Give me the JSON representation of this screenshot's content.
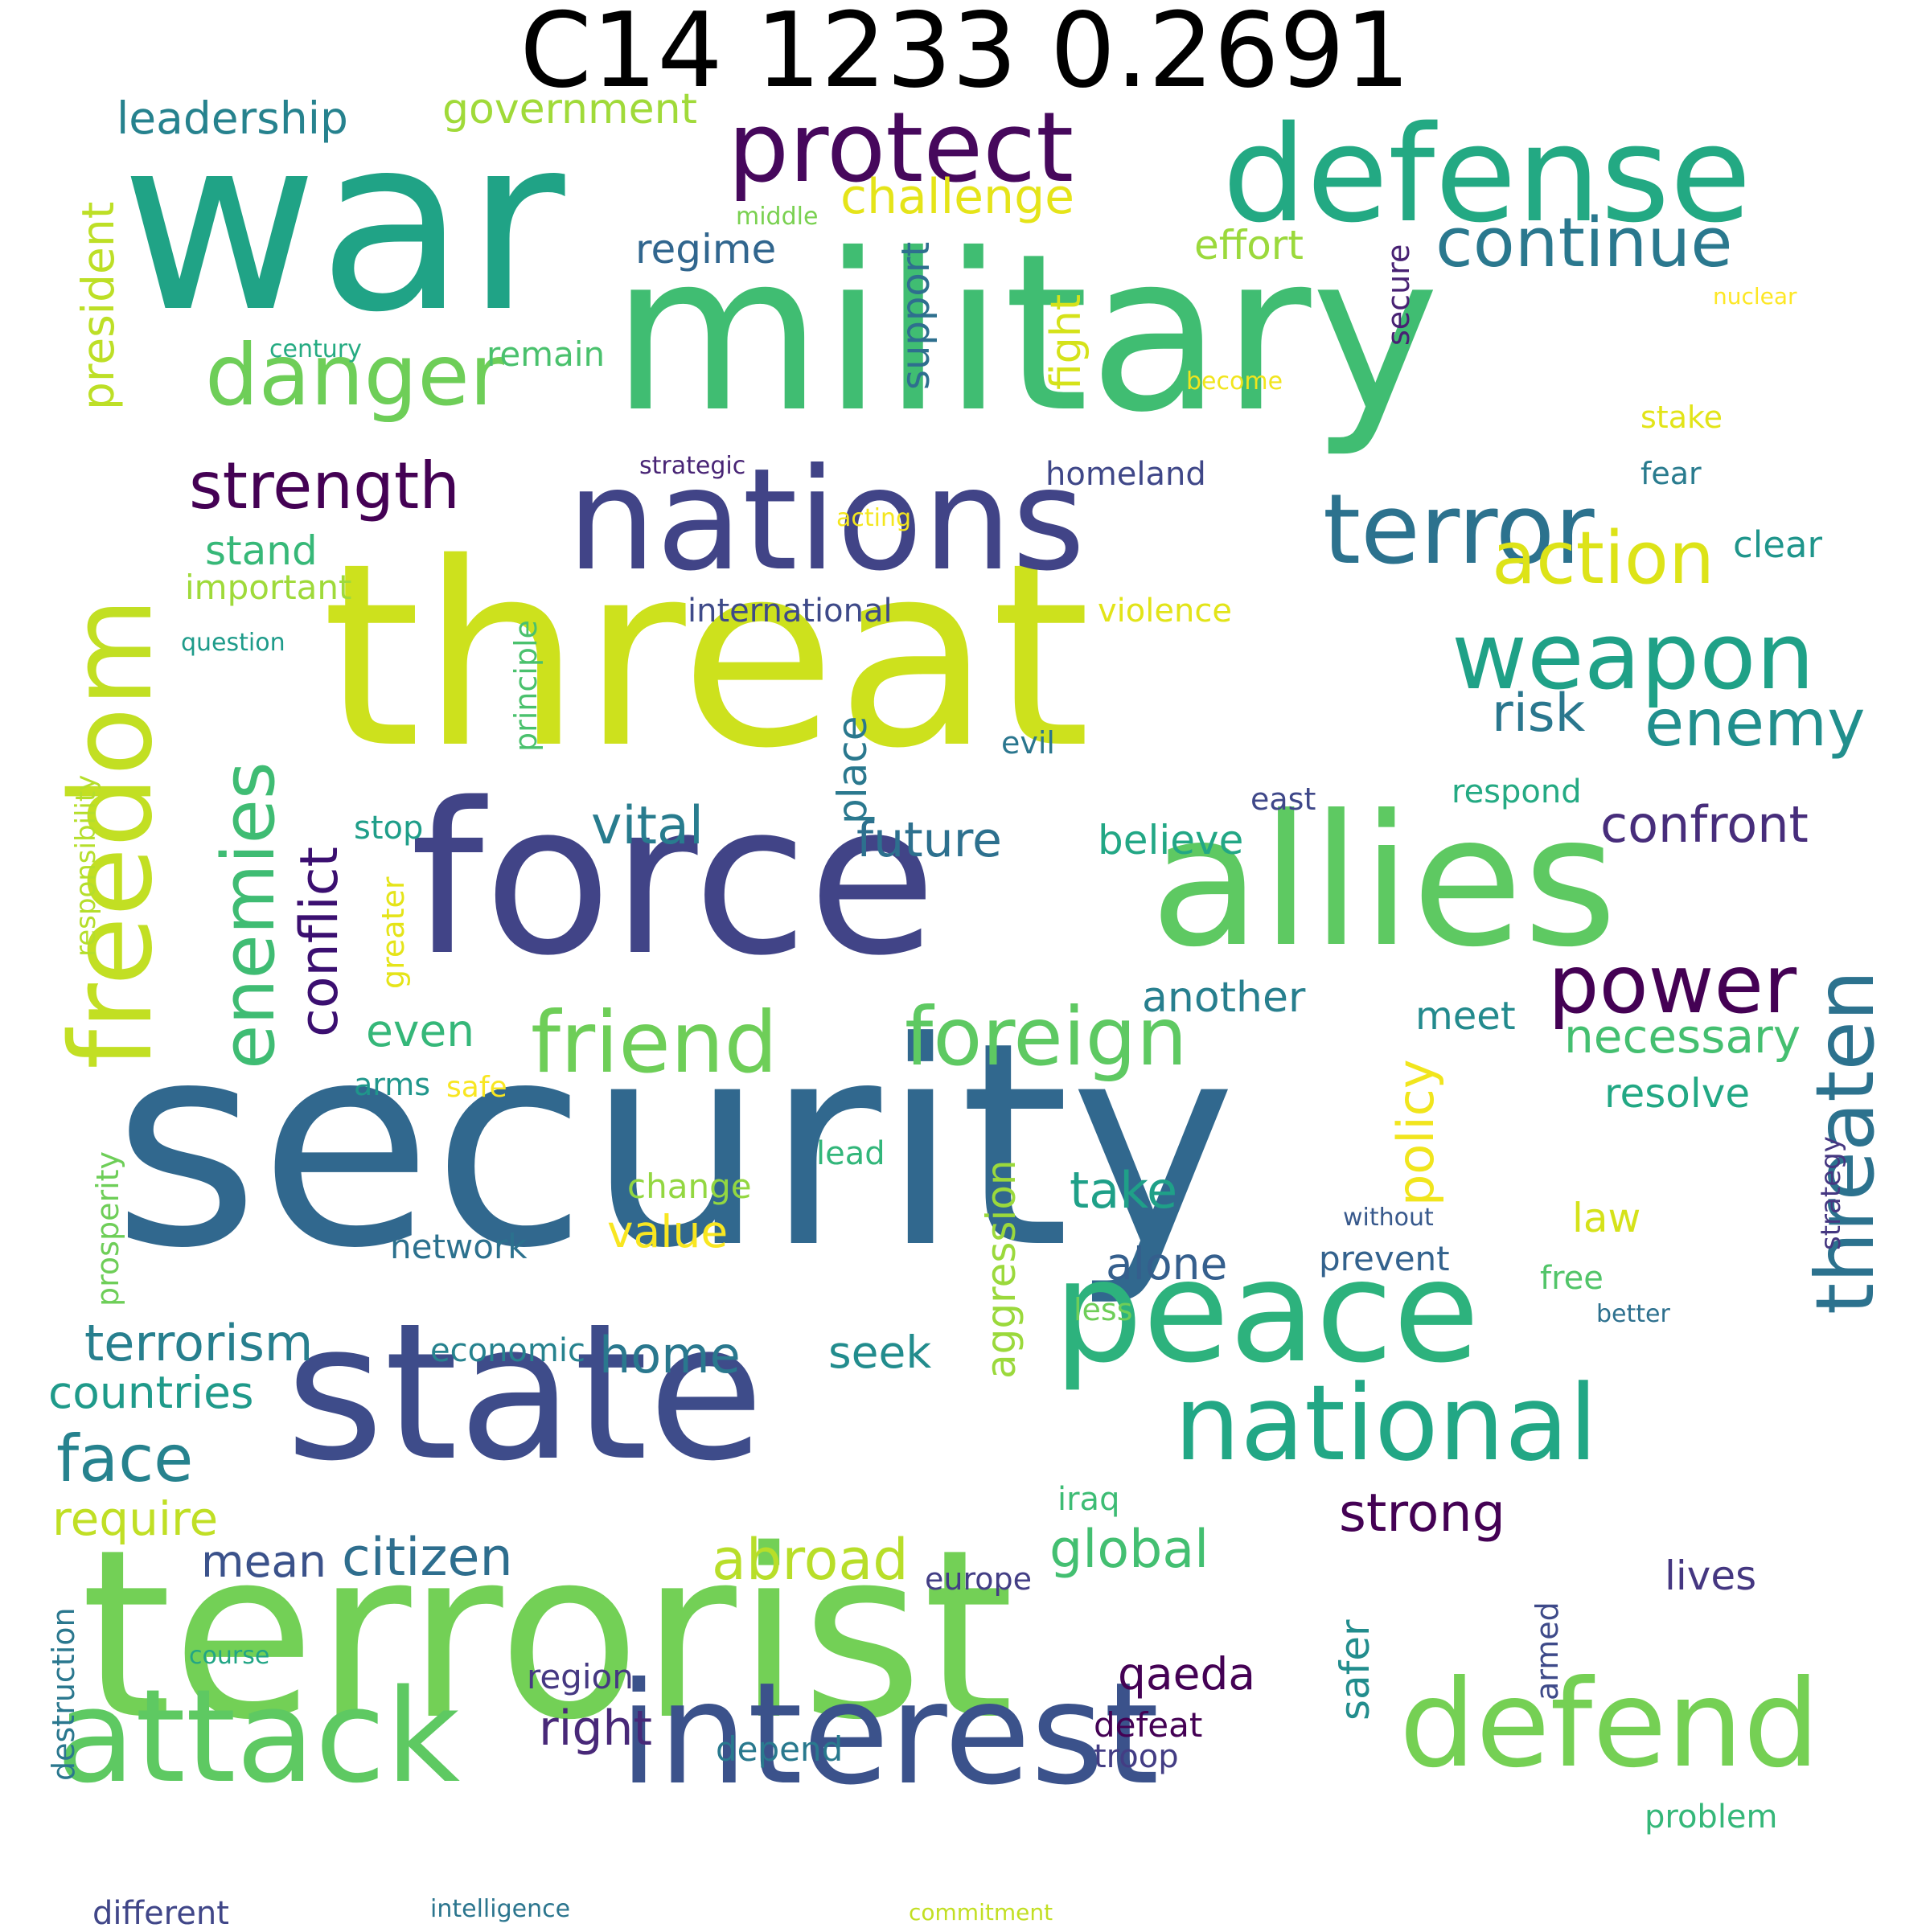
{
  "title": "C14 1233 0.2691",
  "colors": {
    "background": "#ffffff",
    "title": "#000000"
  },
  "words": [
    {
      "text": "war",
      "color": "#20a386"
    },
    {
      "text": "military",
      "color": "#40bd72"
    },
    {
      "text": "defense",
      "color": "#23a983"
    },
    {
      "text": "protect",
      "color": "#46085c"
    },
    {
      "text": "threat",
      "color": "#cde11d"
    },
    {
      "text": "nations",
      "color": "#414487"
    },
    {
      "text": "security",
      "color": "#31688e"
    },
    {
      "text": "force",
      "color": "#414487"
    },
    {
      "text": "allies",
      "color": "#5ec962"
    },
    {
      "text": "terrorist",
      "color": "#73d056"
    },
    {
      "text": "state",
      "color": "#3e4c8a"
    },
    {
      "text": "peace",
      "color": "#2db27d"
    },
    {
      "text": "interest",
      "color": "#3b528b"
    },
    {
      "text": "attack",
      "color": "#5ec962"
    },
    {
      "text": "defend",
      "color": "#75d054"
    },
    {
      "text": "national",
      "color": "#22a785"
    },
    {
      "text": "freedom",
      "color": "#c2df23"
    },
    {
      "text": "terror",
      "color": "#2c728e"
    },
    {
      "text": "danger",
      "color": "#6ece58"
    },
    {
      "text": "weapon",
      "color": "#1fa187"
    },
    {
      "text": "power",
      "color": "#440154"
    },
    {
      "text": "enemies",
      "color": "#3fbc73"
    },
    {
      "text": "friend",
      "color": "#6ece58"
    },
    {
      "text": "foreign",
      "color": "#5ec962"
    },
    {
      "text": "strength",
      "color": "#440154"
    },
    {
      "text": "conflict",
      "color": "#3b0f70"
    },
    {
      "text": "threaten",
      "color": "#2c728e"
    },
    {
      "text": "continue",
      "color": "#2a788e"
    },
    {
      "text": "action",
      "color": "#dde318"
    },
    {
      "text": "enemy",
      "color": "#218f8d"
    },
    {
      "text": "risk",
      "color": "#2a778e"
    },
    {
      "text": "challenge",
      "color": "#e5e419"
    },
    {
      "text": "confront",
      "color": "#472d7b"
    },
    {
      "text": "necessary",
      "color": "#44bf70"
    },
    {
      "text": "vital",
      "color": "#287c8e"
    },
    {
      "text": "future",
      "color": "#2d708e"
    },
    {
      "text": "president",
      "color": "#bddf26"
    },
    {
      "text": "leadership",
      "color": "#26828e"
    },
    {
      "text": "government",
      "color": "#a0da39"
    },
    {
      "text": "fight",
      "color": "#d5e21a"
    },
    {
      "text": "support",
      "color": "#2e6f8e"
    },
    {
      "text": "regime",
      "color": "#31668e"
    },
    {
      "text": "effort",
      "color": "#9bd93c"
    },
    {
      "text": "secure",
      "color": "#482173"
    },
    {
      "text": "middle",
      "color": "#7ad151"
    },
    {
      "text": "nuclear",
      "color": "#fde725"
    },
    {
      "text": "century",
      "color": "#25ab82"
    },
    {
      "text": "remain",
      "color": "#4ac16d"
    },
    {
      "text": "become",
      "color": "#f1e51d"
    },
    {
      "text": "stake",
      "color": "#e2e418"
    },
    {
      "text": "strategic",
      "color": "#482475"
    },
    {
      "text": "homeland",
      "color": "#3f4788"
    },
    {
      "text": "fear",
      "color": "#297b8e"
    },
    {
      "text": "stand",
      "color": "#37b878"
    },
    {
      "text": "acting",
      "color": "#f4e61e"
    },
    {
      "text": "clear",
      "color": "#1f958b"
    },
    {
      "text": "important",
      "color": "#9fda3a"
    },
    {
      "text": "international",
      "color": "#3e4a89"
    },
    {
      "text": "violence",
      "color": "#e2e418"
    },
    {
      "text": "question",
      "color": "#1e9b8a"
    },
    {
      "text": "principle",
      "color": "#4ac16d"
    },
    {
      "text": "responsibility",
      "color": "#b5de2b"
    },
    {
      "text": "place",
      "color": "#2a788e"
    },
    {
      "text": "evil",
      "color": "#2a768e"
    },
    {
      "text": "east",
      "color": "#3f4889"
    },
    {
      "text": "respond",
      "color": "#24aa83"
    },
    {
      "text": "stop",
      "color": "#1f9e89"
    },
    {
      "text": "believe",
      "color": "#22a785"
    },
    {
      "text": "greater",
      "color": "#e5e419"
    },
    {
      "text": "another",
      "color": "#277f8e"
    },
    {
      "text": "policy",
      "color": "#f1e51d"
    },
    {
      "text": "meet",
      "color": "#238a8d"
    },
    {
      "text": "even",
      "color": "#35b779"
    },
    {
      "text": "arms",
      "color": "#1f968b"
    },
    {
      "text": "safe",
      "color": "#f8e621"
    },
    {
      "text": "resolve",
      "color": "#22a884"
    },
    {
      "text": "prosperity",
      "color": "#6ece58"
    },
    {
      "text": "lead",
      "color": "#32b67a"
    },
    {
      "text": "aggression",
      "color": "#9bd93c"
    },
    {
      "text": "change",
      "color": "#93d741"
    },
    {
      "text": "take",
      "color": "#1fa088"
    },
    {
      "text": "without",
      "color": "#38598c"
    },
    {
      "text": "strategy",
      "color": "#453781"
    },
    {
      "text": "law",
      "color": "#d5e21a"
    },
    {
      "text": "network",
      "color": "#2c718e"
    },
    {
      "text": "value",
      "color": "#f8e621"
    },
    {
      "text": "alone",
      "color": "#355f8d"
    },
    {
      "text": "prevent",
      "color": "#33628d"
    },
    {
      "text": "free",
      "color": "#52c569"
    },
    {
      "text": "less",
      "color": "#6ece58"
    },
    {
      "text": "better",
      "color": "#2d708e"
    },
    {
      "text": "economic",
      "color": "#26828e"
    },
    {
      "text": "terrorism",
      "color": "#277f8e"
    },
    {
      "text": "countries",
      "color": "#1f9a8a"
    },
    {
      "text": "home",
      "color": "#2a788e"
    },
    {
      "text": "seek",
      "color": "#228c8d"
    },
    {
      "text": "face",
      "color": "#26828e"
    },
    {
      "text": "require",
      "color": "#c0df25"
    },
    {
      "text": "iraq",
      "color": "#3dbc74"
    },
    {
      "text": "mean",
      "color": "#3b528b"
    },
    {
      "text": "citizen",
      "color": "#2e6e8e"
    },
    {
      "text": "abroad",
      "color": "#b8de29"
    },
    {
      "text": "europe",
      "color": "#433e85"
    },
    {
      "text": "global",
      "color": "#43bf71"
    },
    {
      "text": "strong",
      "color": "#440154"
    },
    {
      "text": "lives",
      "color": "#453781"
    },
    {
      "text": "destruction",
      "color": "#2a778e"
    },
    {
      "text": "course",
      "color": "#21a585"
    },
    {
      "text": "safer",
      "color": "#228d8d"
    },
    {
      "text": "armed",
      "color": "#3e4a89"
    },
    {
      "text": "region",
      "color": "#453882"
    },
    {
      "text": "qaeda",
      "color": "#440154"
    },
    {
      "text": "right",
      "color": "#482878"
    },
    {
      "text": "depend",
      "color": "#29798e"
    },
    {
      "text": "defeat",
      "color": "#440154"
    },
    {
      "text": "troop",
      "color": "#433d84"
    },
    {
      "text": "problem",
      "color": "#35b779"
    },
    {
      "text": "different",
      "color": "#404688"
    },
    {
      "text": "intelligence",
      "color": "#2b758e"
    },
    {
      "text": "commitment",
      "color": "#c2df23"
    }
  ]
}
